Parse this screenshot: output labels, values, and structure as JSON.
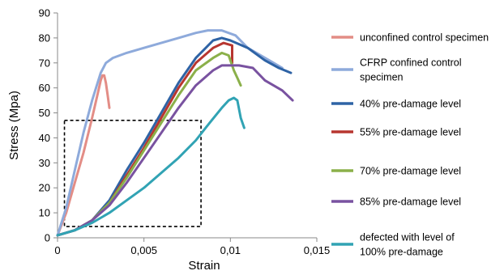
{
  "chart_data": {
    "type": "line",
    "title": "",
    "xlabel": "Strain",
    "ylabel": "Stress (Mpa)",
    "xlim": [
      0,
      0.015
    ],
    "ylim": [
      0,
      90
    ],
    "xticks": [
      "0",
      "0,005",
      "0,01",
      "0,015"
    ],
    "yticks": [
      "0",
      "10",
      "20",
      "30",
      "40",
      "50",
      "60",
      "70",
      "80",
      "90"
    ],
    "grid": false,
    "legend_position": "right",
    "zoom_box": {
      "x": [
        0.0004,
        0.0083
      ],
      "y": [
        4.5,
        47
      ]
    },
    "series": [
      {
        "name": "unconfined control specimen",
        "color": "#e38d86",
        "points": [
          [
            0,
            1
          ],
          [
            0.0005,
            10
          ],
          [
            0.001,
            22
          ],
          [
            0.0015,
            34
          ],
          [
            0.002,
            48
          ],
          [
            0.0023,
            57
          ],
          [
            0.0025,
            63
          ],
          [
            0.0026,
            65
          ],
          [
            0.0027,
            65
          ],
          [
            0.0028,
            62
          ],
          [
            0.0029,
            57
          ],
          [
            0.003,
            52
          ]
        ]
      },
      {
        "name": "CFRP confined control specimen",
        "color": "#8eaadb",
        "points": [
          [
            0,
            1
          ],
          [
            0.0005,
            12
          ],
          [
            0.001,
            27
          ],
          [
            0.0015,
            42
          ],
          [
            0.002,
            55
          ],
          [
            0.0025,
            66
          ],
          [
            0.0028,
            70
          ],
          [
            0.0032,
            72
          ],
          [
            0.004,
            74
          ],
          [
            0.005,
            76
          ],
          [
            0.006,
            78
          ],
          [
            0.007,
            80
          ],
          [
            0.008,
            82
          ],
          [
            0.0087,
            83
          ],
          [
            0.0095,
            83
          ],
          [
            0.0103,
            81
          ],
          [
            0.011,
            76
          ],
          [
            0.012,
            72
          ],
          [
            0.0125,
            70
          ],
          [
            0.013,
            68
          ]
        ]
      },
      {
        "name": "40% pre-damage level",
        "color": "#2e63a5",
        "points": [
          [
            0,
            1
          ],
          [
            0.001,
            3
          ],
          [
            0.002,
            7
          ],
          [
            0.003,
            15
          ],
          [
            0.004,
            27
          ],
          [
            0.005,
            38
          ],
          [
            0.006,
            50
          ],
          [
            0.007,
            62
          ],
          [
            0.008,
            72
          ],
          [
            0.009,
            79
          ],
          [
            0.0095,
            80
          ],
          [
            0.01,
            79
          ],
          [
            0.011,
            76
          ],
          [
            0.012,
            71
          ],
          [
            0.0128,
            68
          ],
          [
            0.0135,
            66
          ]
        ]
      },
      {
        "name": "55% pre-damage level",
        "color": "#b73630",
        "points": [
          [
            0,
            1
          ],
          [
            0.001,
            3
          ],
          [
            0.002,
            7
          ],
          [
            0.003,
            14
          ],
          [
            0.004,
            25
          ],
          [
            0.005,
            36
          ],
          [
            0.006,
            48
          ],
          [
            0.007,
            60
          ],
          [
            0.008,
            70
          ],
          [
            0.009,
            76
          ],
          [
            0.0096,
            78
          ],
          [
            0.0101,
            77
          ],
          [
            0.0101,
            70
          ]
        ]
      },
      {
        "name": "70% pre-damage level",
        "color": "#8bb04a",
        "points": [
          [
            0,
            1
          ],
          [
            0.001,
            3
          ],
          [
            0.002,
            7
          ],
          [
            0.003,
            14
          ],
          [
            0.004,
            24
          ],
          [
            0.005,
            35
          ],
          [
            0.006,
            46
          ],
          [
            0.007,
            57
          ],
          [
            0.008,
            67
          ],
          [
            0.009,
            72
          ],
          [
            0.0095,
            74
          ],
          [
            0.0099,
            73
          ],
          [
            0.0102,
            67
          ],
          [
            0.0104,
            64
          ],
          [
            0.0106,
            61
          ]
        ]
      },
      {
        "name": "85% pre-damage level",
        "color": "#7952a0",
        "points": [
          [
            0,
            1
          ],
          [
            0.001,
            3
          ],
          [
            0.002,
            7
          ],
          [
            0.003,
            13
          ],
          [
            0.004,
            22
          ],
          [
            0.005,
            32
          ],
          [
            0.006,
            42
          ],
          [
            0.007,
            52
          ],
          [
            0.008,
            61
          ],
          [
            0.009,
            67
          ],
          [
            0.0095,
            69
          ],
          [
            0.0105,
            69
          ],
          [
            0.0113,
            68
          ],
          [
            0.012,
            63
          ],
          [
            0.013,
            59
          ],
          [
            0.0136,
            55
          ]
        ]
      },
      {
        "name": "defected with level of 100% pre-damage",
        "color": "#31a3b4",
        "points": [
          [
            0,
            1
          ],
          [
            0.001,
            3
          ],
          [
            0.002,
            6
          ],
          [
            0.003,
            10
          ],
          [
            0.004,
            15
          ],
          [
            0.005,
            20
          ],
          [
            0.006,
            26
          ],
          [
            0.007,
            32
          ],
          [
            0.008,
            39
          ],
          [
            0.0088,
            46
          ],
          [
            0.0095,
            52
          ],
          [
            0.0099,
            55
          ],
          [
            0.0102,
            56
          ],
          [
            0.0104,
            55
          ],
          [
            0.0106,
            48
          ],
          [
            0.0108,
            44
          ]
        ]
      }
    ]
  },
  "legend": {
    "entries": [
      {
        "lines": [
          "unconfined control specimen"
        ],
        "color": "#e38d86"
      },
      {
        "lines": [
          "CFRP confined control",
          "specimen"
        ],
        "color": "#8eaadb"
      },
      {
        "lines": [
          "40% pre-damage level"
        ],
        "color": "#2e63a5"
      },
      {
        "lines": [
          "55% pre-damage level"
        ],
        "color": "#b73630"
      },
      {
        "lines": [
          "70% pre-damage level"
        ],
        "color": "#8bb04a"
      },
      {
        "lines": [
          "85% pre-damage level"
        ],
        "color": "#7952a0"
      },
      {
        "lines": [
          "defected with level of",
          "100% pre-damage"
        ],
        "color": "#31a3b4"
      }
    ]
  }
}
